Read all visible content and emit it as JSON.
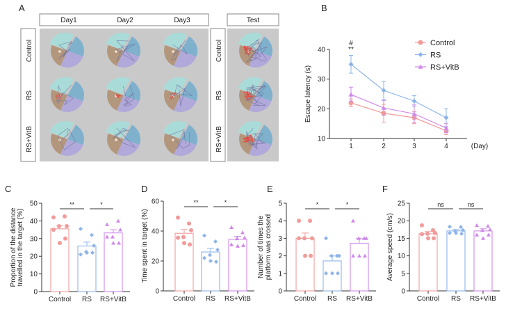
{
  "panel_a": {
    "label": "A",
    "day_headers": [
      "Day1",
      "Day2",
      "Day3"
    ],
    "test_header": "Test",
    "row_labels": [
      "Control",
      "RS",
      "RS+VitB"
    ],
    "quadrant_colors": {
      "top": "#a9dcd8",
      "right": "#7fb1cd",
      "left": "#b3977c",
      "bottom": "#b1a9da"
    },
    "background": "#c9c9c9"
  },
  "colors": {
    "Control": "#f29b9b",
    "RS": "#8db4ea",
    "RS+VitB": "#cf8ae9"
  },
  "chart_data": [
    {
      "panel": "B",
      "type": "line",
      "ylabel": "Escape latency (s)",
      "xlabel": "(Day)",
      "x": [
        1,
        2,
        3,
        4
      ],
      "ylim": [
        10,
        40
      ],
      "yticks": [
        10,
        20,
        30,
        40
      ],
      "legend_position": "top-right",
      "annotations": [
        {
          "x": 1,
          "labels": [
            "#",
            "**"
          ]
        }
      ],
      "series": [
        {
          "name": "Control",
          "marker": "circle",
          "values": [
            22,
            18.5,
            17,
            12.6
          ],
          "errors": [
            1.3,
            3,
            2,
            1.3
          ]
        },
        {
          "name": "RS",
          "marker": "diamond",
          "values": [
            35,
            26.2,
            22.6,
            17
          ],
          "errors": [
            3,
            3,
            1.8,
            3
          ]
        },
        {
          "name": "RS+VitB",
          "marker": "triangle",
          "values": [
            24.8,
            20.3,
            18.3,
            13.5
          ],
          "errors": [
            2.5,
            2.5,
            3,
            1.5
          ]
        }
      ]
    },
    {
      "panel": "C",
      "type": "bar",
      "ylabel": [
        "Proportion of the distance",
        "travelled in the target (%)"
      ],
      "categories": [
        "Control",
        "RS",
        "RS+VitB"
      ],
      "ylim": [
        0,
        50
      ],
      "yticks": [
        0,
        10,
        20,
        30,
        40,
        50
      ],
      "values": [
        35.5,
        25.8,
        33.2
      ],
      "errors": [
        2,
        2.2,
        1.8
      ],
      "points": [
        [
          42,
          42.5,
          37,
          37,
          35,
          30,
          27.5
        ],
        [
          35.5,
          32,
          26,
          22.5,
          21,
          22,
          22
        ],
        [
          38,
          40,
          35,
          31,
          31,
          27.5,
          27.5
        ]
      ],
      "significance": [
        {
          "from": 0,
          "to": 1,
          "label": "**"
        },
        {
          "from": 1,
          "to": 2,
          "label": "*"
        }
      ]
    },
    {
      "panel": "D",
      "type": "bar",
      "ylabel": [
        "Time spent in target (%)"
      ],
      "categories": [
        "Control",
        "RS",
        "RS+VitB"
      ],
      "ylim": [
        0,
        60
      ],
      "yticks": [
        0,
        20,
        40,
        60
      ],
      "values": [
        38.5,
        26,
        34.5
      ],
      "errors": [
        2.5,
        2.5,
        2
      ],
      "points": [
        [
          49,
          45,
          40.5,
          36,
          35.5,
          31,
          32
        ],
        [
          37,
          33,
          27.5,
          24,
          22,
          19.5,
          20
        ],
        [
          42.5,
          39,
          35.5,
          35,
          31,
          30.5,
          30
        ]
      ],
      "significance": [
        {
          "from": 0,
          "to": 1,
          "label": "**"
        },
        {
          "from": 1,
          "to": 2,
          "label": "*"
        }
      ]
    },
    {
      "panel": "E",
      "type": "bar",
      "ylabel": [
        "Number of times the",
        "platform was crossed"
      ],
      "categories": [
        "Control",
        "RS",
        "RS+VitB"
      ],
      "ylim": [
        0,
        5
      ],
      "yticks": [
        0,
        1,
        2,
        3,
        4,
        5
      ],
      "values": [
        3,
        1.71,
        2.71
      ],
      "errors": [
        0.3,
        0.28,
        0.28
      ],
      "points": [
        [
          4,
          4,
          3,
          3,
          3,
          2,
          2
        ],
        [
          3,
          2,
          2,
          2,
          1,
          1,
          1
        ],
        [
          4,
          3,
          3,
          3,
          2,
          2,
          2
        ]
      ],
      "significance": [
        {
          "from": 0,
          "to": 1,
          "label": "*"
        },
        {
          "from": 1,
          "to": 2,
          "label": "*"
        }
      ]
    },
    {
      "panel": "F",
      "type": "bar",
      "ylabel": [
        "Average speed (cm/s)"
      ],
      "categories": [
        "Control",
        "RS",
        "RS+VitB"
      ],
      "ylim": [
        0,
        25
      ],
      "yticks": [
        0,
        5,
        10,
        15,
        20,
        25
      ],
      "values": [
        16.3,
        17.1,
        17.1
      ],
      "errors": [
        0.6,
        0.4,
        0.6
      ],
      "points": [
        [
          18.7,
          17.3,
          16.5,
          16.3,
          16.2,
          15,
          15
        ],
        [
          18.3,
          18.2,
          17.3,
          17,
          16.5,
          16.3,
          16.5
        ],
        [
          18.7,
          18.5,
          17.5,
          17.3,
          16,
          16,
          15
        ]
      ],
      "significance": [
        {
          "from": 0,
          "to": 1,
          "label": "ns"
        },
        {
          "from": 1,
          "to": 2,
          "label": "ns"
        }
      ]
    }
  ]
}
